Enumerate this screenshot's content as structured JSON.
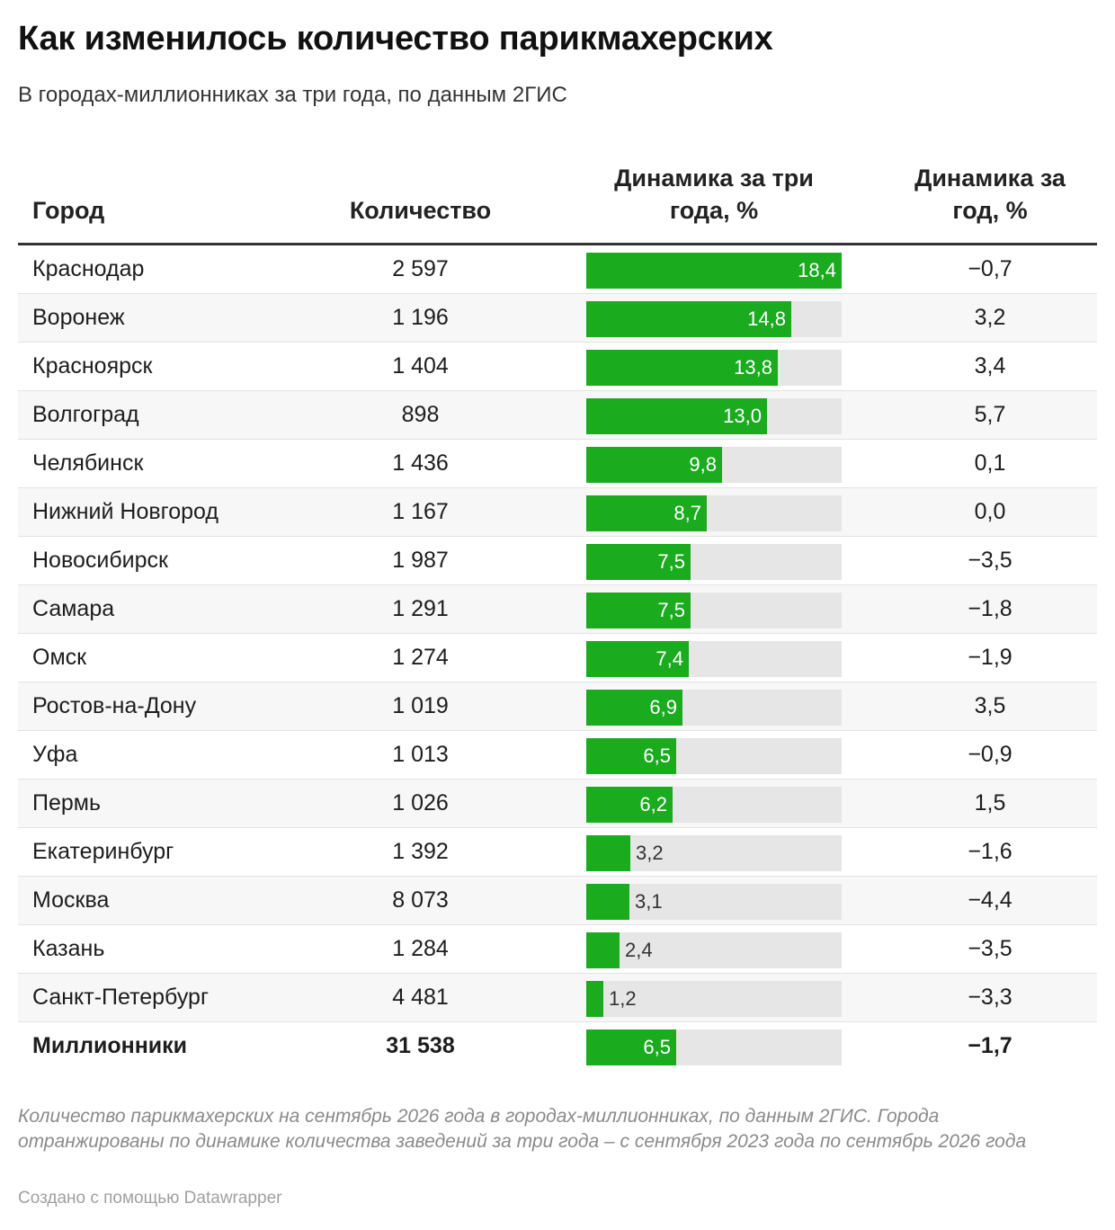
{
  "title": "Как изменилось количество парикмахерских",
  "subtitle": "В городах-миллионниках за три года, по данным 2ГИС",
  "headers": {
    "city": "Город",
    "count": "Количество",
    "dyn3": "Динамика за три года, %",
    "dyn1": "Динамика за год, %"
  },
  "notes": "Количество парикмахерских на сентябрь 2026 года в городах-миллионниках, по данным 2ГИС. Города отранжированы по динамике количества заведений за три года – с сентября 2023 года по сентябрь 2026 года",
  "credit": "Создано с помощью Datawrapper",
  "colors": {
    "bar": "#1aab1f",
    "track": "#e6e6e6"
  },
  "chart_data": {
    "type": "table",
    "bar_column": "dyn3",
    "bar_max": 18.4,
    "rows": [
      {
        "city": "Краснодар",
        "count": "2 597",
        "dyn3": 18.4,
        "dyn3_label": "18,4",
        "dyn1": "−0,7"
      },
      {
        "city": "Воронеж",
        "count": "1 196",
        "dyn3": 14.8,
        "dyn3_label": "14,8",
        "dyn1": "3,2"
      },
      {
        "city": "Красноярск",
        "count": "1 404",
        "dyn3": 13.8,
        "dyn3_label": "13,8",
        "dyn1": "3,4"
      },
      {
        "city": "Волгоград",
        "count": "898",
        "dyn3": 13.0,
        "dyn3_label": "13,0",
        "dyn1": "5,7"
      },
      {
        "city": "Челябинск",
        "count": "1 436",
        "dyn3": 9.8,
        "dyn3_label": "9,8",
        "dyn1": "0,1"
      },
      {
        "city": "Нижний Новгород",
        "count": "1 167",
        "dyn3": 8.7,
        "dyn3_label": "8,7",
        "dyn1": "0,0"
      },
      {
        "city": "Новосибирск",
        "count": "1 987",
        "dyn3": 7.5,
        "dyn3_label": "7,5",
        "dyn1": "−3,5"
      },
      {
        "city": "Самара",
        "count": "1 291",
        "dyn3": 7.5,
        "dyn3_label": "7,5",
        "dyn1": "−1,8"
      },
      {
        "city": "Омск",
        "count": "1 274",
        "dyn3": 7.4,
        "dyn3_label": "7,4",
        "dyn1": "−1,9"
      },
      {
        "city": "Ростов-на-Дону",
        "count": "1 019",
        "dyn3": 6.9,
        "dyn3_label": "6,9",
        "dyn1": "3,5"
      },
      {
        "city": "Уфа",
        "count": "1 013",
        "dyn3": 6.5,
        "dyn3_label": "6,5",
        "dyn1": "−0,9"
      },
      {
        "city": "Пермь",
        "count": "1 026",
        "dyn3": 6.2,
        "dyn3_label": "6,2",
        "dyn1": "1,5"
      },
      {
        "city": "Екатеринбург",
        "count": "1 392",
        "dyn3": 3.2,
        "dyn3_label": "3,2",
        "dyn1": "−1,6"
      },
      {
        "city": "Москва",
        "count": "8 073",
        "dyn3": 3.1,
        "dyn3_label": "3,1",
        "dyn1": "−4,4"
      },
      {
        "city": "Казань",
        "count": "1 284",
        "dyn3": 2.4,
        "dyn3_label": "2,4",
        "dyn1": "−3,5"
      },
      {
        "city": "Санкт-Петербург",
        "count": "4 481",
        "dyn3": 1.2,
        "dyn3_label": "1,2",
        "dyn1": "−3,3"
      }
    ],
    "total": {
      "city": "Миллионники",
      "count": "31 538",
      "dyn3": 6.5,
      "dyn3_label": "6,5",
      "dyn1": "−1,7"
    }
  }
}
